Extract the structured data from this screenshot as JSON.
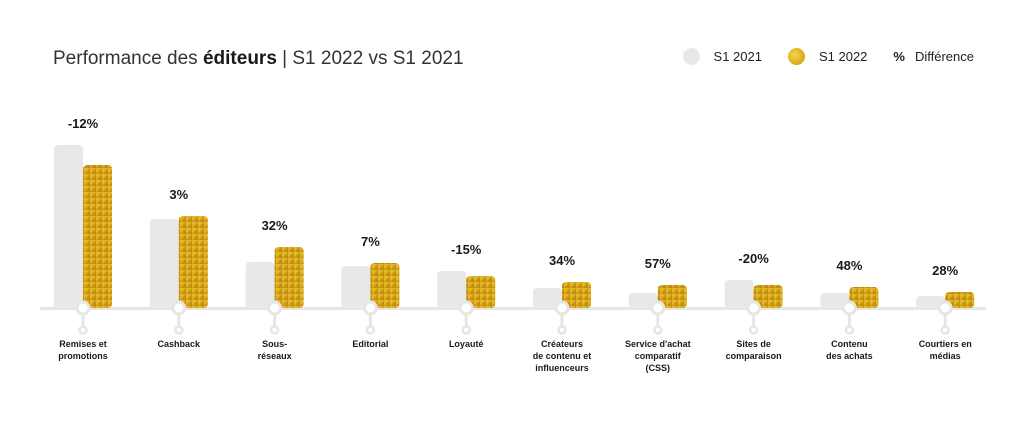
{
  "title": {
    "prefix": "Performance des ",
    "bold": "éditeurs",
    "suffix": " | S1 2022 vs S1 2021"
  },
  "legend": {
    "s2021": "S1 2021",
    "s2022": "S1 2022",
    "pct_symbol": "%",
    "diff": "Différence"
  },
  "colors": {
    "s2021": "#e8e8e8",
    "s2022": "#d4a417",
    "axis": "#e6e6e6"
  },
  "chart_data": {
    "type": "bar",
    "title": "Performance des éditeurs | S1 2022 vs S1 2021",
    "xlabel": "",
    "ylabel": "",
    "ylim": [
      0,
      170
    ],
    "grid": false,
    "legend_position": "top-right",
    "categories": [
      [
        "Remises et",
        "promotions"
      ],
      [
        "Cashback"
      ],
      [
        "Sous-",
        "réseaux"
      ],
      [
        "Editorial"
      ],
      [
        "Loyauté"
      ],
      [
        "Créateurs",
        "de contenu et",
        "influenceurs"
      ],
      [
        "Service d'achat",
        "comparatif",
        "(CSS)"
      ],
      [
        "Sites de",
        "comparaison"
      ],
      [
        "Contenu",
        "des achats"
      ],
      [
        "Courtiers en",
        "médias"
      ]
    ],
    "series": [
      {
        "name": "S1 2021",
        "values": [
          163,
          89,
          46,
          42,
          37,
          20,
          15,
          28,
          15,
          12
        ]
      },
      {
        "name": "S1 2022",
        "values": [
          143,
          92,
          61,
          45,
          32,
          26,
          23,
          23,
          21,
          16
        ]
      }
    ],
    "differences": [
      "-12%",
      "3%",
      "32%",
      "7%",
      "-15%",
      "34%",
      "57%",
      "-20%",
      "48%",
      "28%"
    ]
  }
}
